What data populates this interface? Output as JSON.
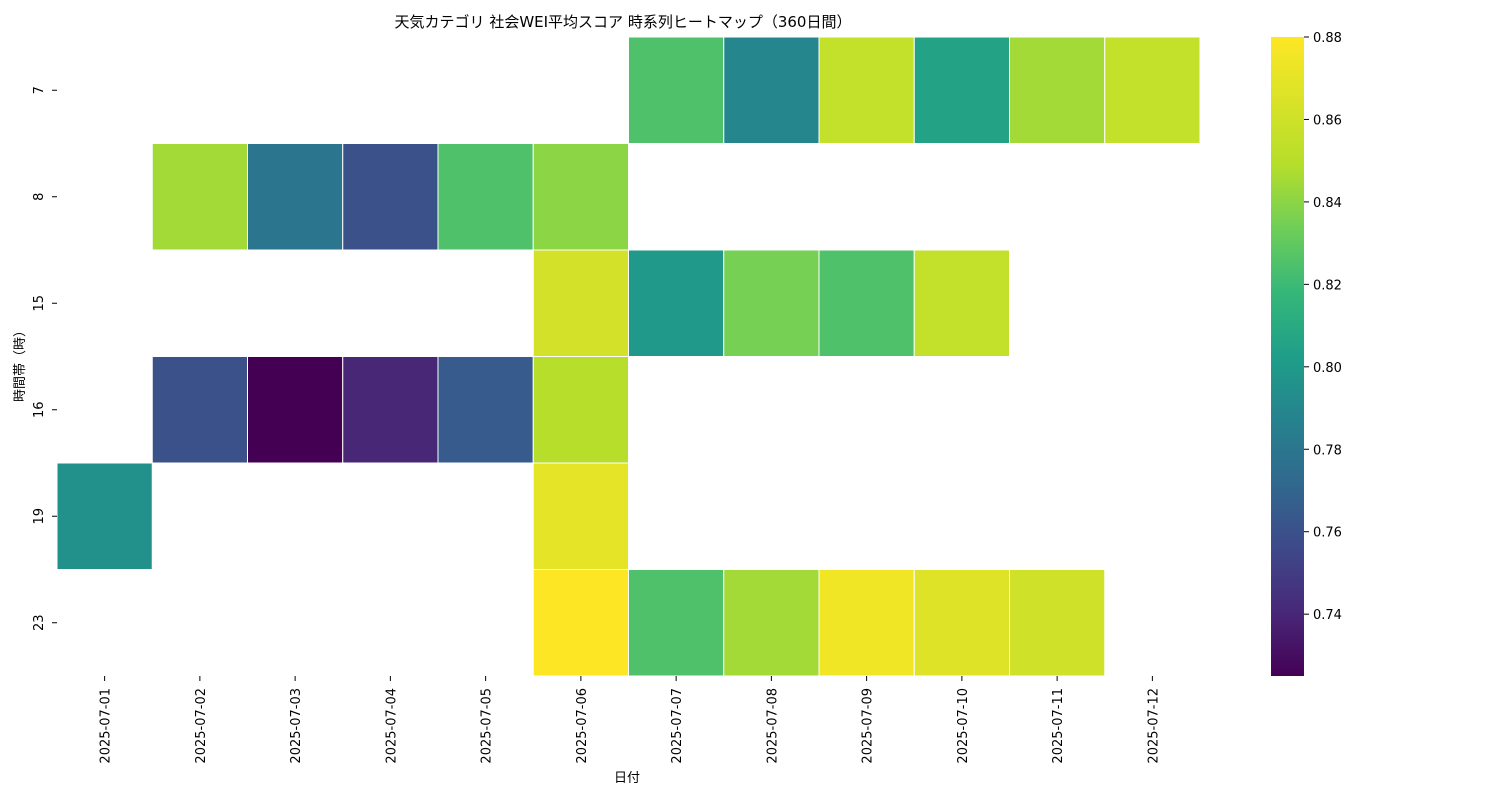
{
  "chart_data": {
    "type": "heatmap",
    "title": "天気カテゴリ 社会WEI平均スコア 時系列ヒートマップ（360日間）",
    "xlabel": "日付",
    "ylabel": "時間帯（時）",
    "x": [
      "2025-07-01",
      "2025-07-02",
      "2025-07-03",
      "2025-07-04",
      "2025-07-05",
      "2025-07-06",
      "2025-07-07",
      "2025-07-08",
      "2025-07-09",
      "2025-07-10",
      "2025-07-11",
      "2025-07-12"
    ],
    "y": [
      "7",
      "8",
      "15",
      "16",
      "19",
      "23"
    ],
    "values": [
      [
        null,
        null,
        null,
        null,
        null,
        null,
        0.825,
        0.79,
        0.855,
        0.805,
        0.845,
        0.855
      ],
      [
        null,
        0.845,
        0.78,
        0.76,
        0.825,
        0.84,
        null,
        null,
        null,
        null,
        null,
        null
      ],
      [
        null,
        null,
        null,
        null,
        null,
        0.862,
        0.8,
        0.835,
        0.825,
        0.855,
        null,
        null
      ],
      [
        null,
        0.76,
        0.725,
        0.74,
        0.765,
        0.85,
        null,
        null,
        null,
        null,
        null,
        null
      ],
      [
        0.795,
        null,
        null,
        null,
        null,
        0.87,
        null,
        null,
        null,
        null,
        null,
        null
      ],
      [
        null,
        null,
        null,
        null,
        null,
        0.88,
        0.825,
        0.845,
        0.875,
        0.867,
        0.86,
        null
      ]
    ],
    "colorbar": {
      "colormap": "viridis",
      "vmin": 0.725,
      "vmax": 0.88,
      "ticks": [
        0.74,
        0.76,
        0.78,
        0.8,
        0.82,
        0.84,
        0.86,
        0.88
      ],
      "tick_labels": [
        "0.74",
        "0.76",
        "0.78",
        "0.80",
        "0.82",
        "0.84",
        "0.86",
        "0.88"
      ]
    },
    "grid": false
  }
}
